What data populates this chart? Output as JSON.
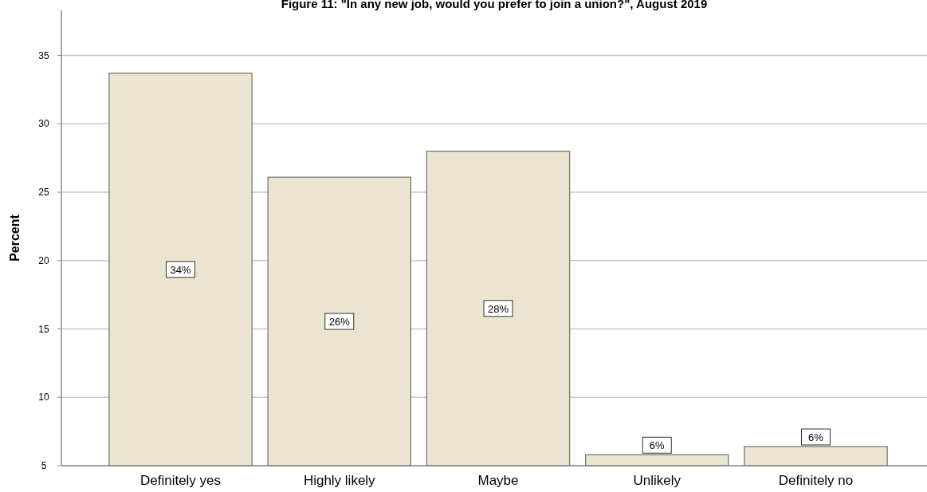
{
  "chart_data": {
    "type": "bar",
    "title": "Figure 11: \"In any new job, would you prefer to join a union?\", August 2019",
    "ylabel": "Percent",
    "categories": [
      "Definitely yes",
      "Highly likely",
      "Maybe",
      "Unlikely",
      "Definitely no"
    ],
    "values": [
      33.7,
      26.1,
      28.0,
      5.8,
      6.4
    ],
    "value_labels": [
      "34%",
      "26%",
      "28%",
      "6%",
      "6%"
    ],
    "color": "#ebe4d0",
    "ylim": [
      5,
      38.3
    ],
    "yticks": [
      5,
      10,
      15,
      20,
      25,
      30,
      35
    ],
    "grid": "y"
  }
}
